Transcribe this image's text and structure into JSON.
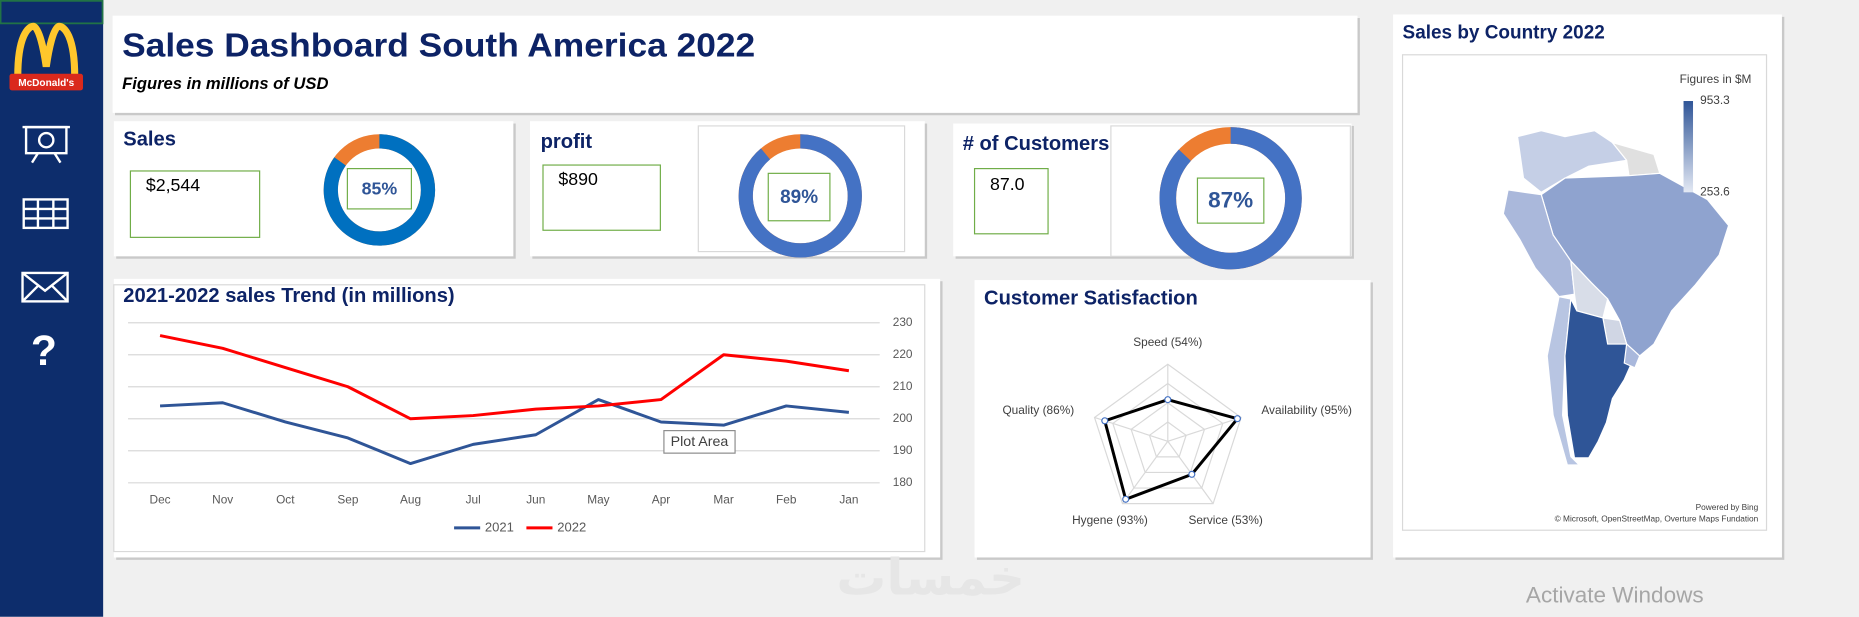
{
  "header": {
    "title": "Sales Dashboard South America 2022",
    "subtitle": "Figures in millions of USD"
  },
  "sidebar": {
    "logo_text": "McDonald's",
    "help_icon": "?"
  },
  "kpis": [
    {
      "label": "Sales",
      "value": "$2,544"
    },
    {
      "label": "profit",
      "value": "$890"
    },
    {
      "label": "# of Customers",
      "value": "87.0"
    }
  ],
  "chart_data": [
    {
      "type": "donut",
      "values": [
        85
      ],
      "value_labels": [
        "85%"
      ],
      "ylim": [
        0,
        100
      ],
      "color": "#0070c0",
      "remainder_color": "#ed7d31"
    },
    {
      "type": "donut",
      "values": [
        89
      ],
      "value_labels": [
        "89%"
      ],
      "ylim": [
        0,
        100
      ],
      "color": "#4472c4",
      "remainder_color": "#ed7d31"
    },
    {
      "type": "donut",
      "values": [
        87
      ],
      "value_labels": [
        "87%"
      ],
      "ylim": [
        0,
        100
      ],
      "color": "#4472c4",
      "remainder_color": "#ed7d31"
    },
    {
      "type": "line",
      "title": "2021-2022 sales Trend (in millions)",
      "categories": [
        "Dec",
        "Nov",
        "Oct",
        "Sep",
        "Aug",
        "Jul",
        "Jun",
        "May",
        "Apr",
        "Mar",
        "Feb",
        "Jan"
      ],
      "series": [
        {
          "name": "2021",
          "color": "#2f5597",
          "values": [
            204,
            205,
            199,
            194,
            186,
            192,
            195,
            206,
            199,
            198,
            204,
            202
          ]
        },
        {
          "name": "2022",
          "color": "#ff0000",
          "values": [
            226,
            222,
            216,
            210,
            200,
            201,
            203,
            204,
            206,
            220,
            218,
            215
          ]
        }
      ],
      "ylim": [
        180,
        230
      ],
      "yticks": [
        180,
        190,
        200,
        210,
        220,
        230
      ],
      "grid": true,
      "legend": "bottom"
    },
    {
      "type": "radar",
      "title": "Customer Satisfaction",
      "categories": [
        "Speed (54%)",
        "Availability (95%)",
        "Service (53%)",
        "Hygene (93%)",
        "Quality (86%)"
      ],
      "values": [
        54,
        95,
        53,
        93,
        86
      ],
      "rlim": [
        0,
        100
      ],
      "rticks": [
        25,
        50,
        75,
        100
      ],
      "color": "#000000"
    },
    {
      "type": "map",
      "title": "Sales  by Country 2022",
      "legend_title": "Figures in $M",
      "clim": [
        253.6,
        953.3
      ],
      "cticks": [
        253.6,
        953.3
      ],
      "color_low": "#e4e9f4",
      "color_high": "#2f5597",
      "credits": [
        "Powered by Bing",
        "© Microsoft, OpenStreetMap, Overture Maps Fundation"
      ]
    }
  ],
  "tooltip": "Plot Area",
  "watermarks": [
    "خمسات",
    "Activate Windows"
  ]
}
